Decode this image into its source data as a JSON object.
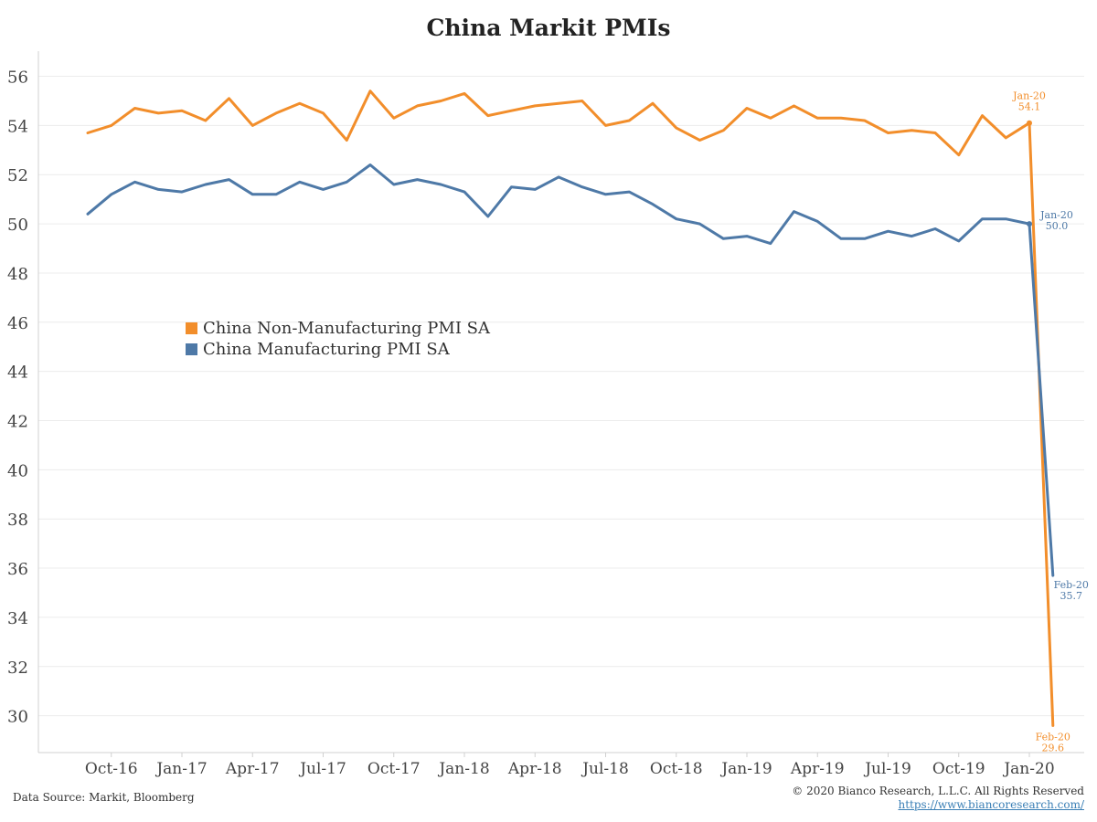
{
  "chart_data": {
    "type": "line",
    "title": "China Markit PMIs",
    "ylim": [
      28.5,
      56.8
    ],
    "yticks": [
      30,
      32,
      34,
      36,
      38,
      40,
      42,
      44,
      46,
      48,
      50,
      52,
      54,
      56
    ],
    "xtick_labels": [
      "Oct-16",
      "Jan-17",
      "Apr-17",
      "Jul-17",
      "Oct-17",
      "Jan-18",
      "Apr-18",
      "Jul-18",
      "Oct-18",
      "Jan-19",
      "Apr-19",
      "Jul-19",
      "Oct-19",
      "Jan-20"
    ],
    "x": [
      "Sep-16",
      "Oct-16",
      "Nov-16",
      "Dec-16",
      "Jan-17",
      "Feb-17",
      "Mar-17",
      "Apr-17",
      "May-17",
      "Jun-17",
      "Jul-17",
      "Aug-17",
      "Sep-17",
      "Oct-17",
      "Nov-17",
      "Dec-17",
      "Jan-18",
      "Feb-18",
      "Mar-18",
      "Apr-18",
      "May-18",
      "Jun-18",
      "Jul-18",
      "Aug-18",
      "Sep-18",
      "Oct-18",
      "Nov-18",
      "Dec-18",
      "Jan-19",
      "Feb-19",
      "Mar-19",
      "Apr-19",
      "May-19",
      "Jun-19",
      "Jul-19",
      "Aug-19",
      "Sep-19",
      "Oct-19",
      "Nov-19",
      "Dec-19",
      "Jan-20",
      "Feb-20"
    ],
    "series": [
      {
        "name": "China Non-Manufacturing PMI SA",
        "color": "#f28e2b",
        "values": [
          53.7,
          54.0,
          54.7,
          54.5,
          54.6,
          54.2,
          55.1,
          54.0,
          54.5,
          54.9,
          54.5,
          53.4,
          55.4,
          54.3,
          54.8,
          55.0,
          55.3,
          54.4,
          54.6,
          54.8,
          54.9,
          55.0,
          54.0,
          54.2,
          54.9,
          53.9,
          53.4,
          53.8,
          54.7,
          54.3,
          54.8,
          54.3,
          54.3,
          54.2,
          53.7,
          53.8,
          53.7,
          52.8,
          54.4,
          53.5,
          54.1,
          29.6
        ]
      },
      {
        "name": "China Manufacturing PMI SA",
        "color": "#4e79a7",
        "values": [
          50.4,
          51.2,
          51.7,
          51.4,
          51.3,
          51.6,
          51.8,
          51.2,
          51.2,
          51.7,
          51.4,
          51.7,
          52.4,
          51.6,
          51.8,
          51.6,
          51.3,
          50.3,
          51.5,
          51.4,
          51.9,
          51.5,
          51.2,
          51.3,
          50.8,
          50.2,
          50.0,
          49.4,
          49.5,
          49.2,
          50.5,
          50.1,
          49.4,
          49.4,
          49.7,
          49.5,
          49.8,
          49.3,
          50.2,
          50.2,
          50.0,
          35.7
        ]
      }
    ],
    "annotations": [
      {
        "series": 0,
        "index": 40,
        "lines": [
          "Jan-20",
          "54.1"
        ]
      },
      {
        "series": 0,
        "index": 41,
        "lines": [
          "Feb-20",
          "29.6"
        ]
      },
      {
        "series": 1,
        "index": 40,
        "lines": [
          "Jan-20",
          "50.0"
        ]
      },
      {
        "series": 1,
        "index": 41,
        "lines": [
          "Feb-20",
          "35.7"
        ]
      }
    ],
    "grid": true,
    "legend_position": "center-left"
  },
  "footer": {
    "source": "Data Source: Markit, Bloomberg",
    "copyright": "© 2020 Bianco Research, L.L.C. All Rights Reserved",
    "url": "https://www.biancoresearch.com/"
  }
}
